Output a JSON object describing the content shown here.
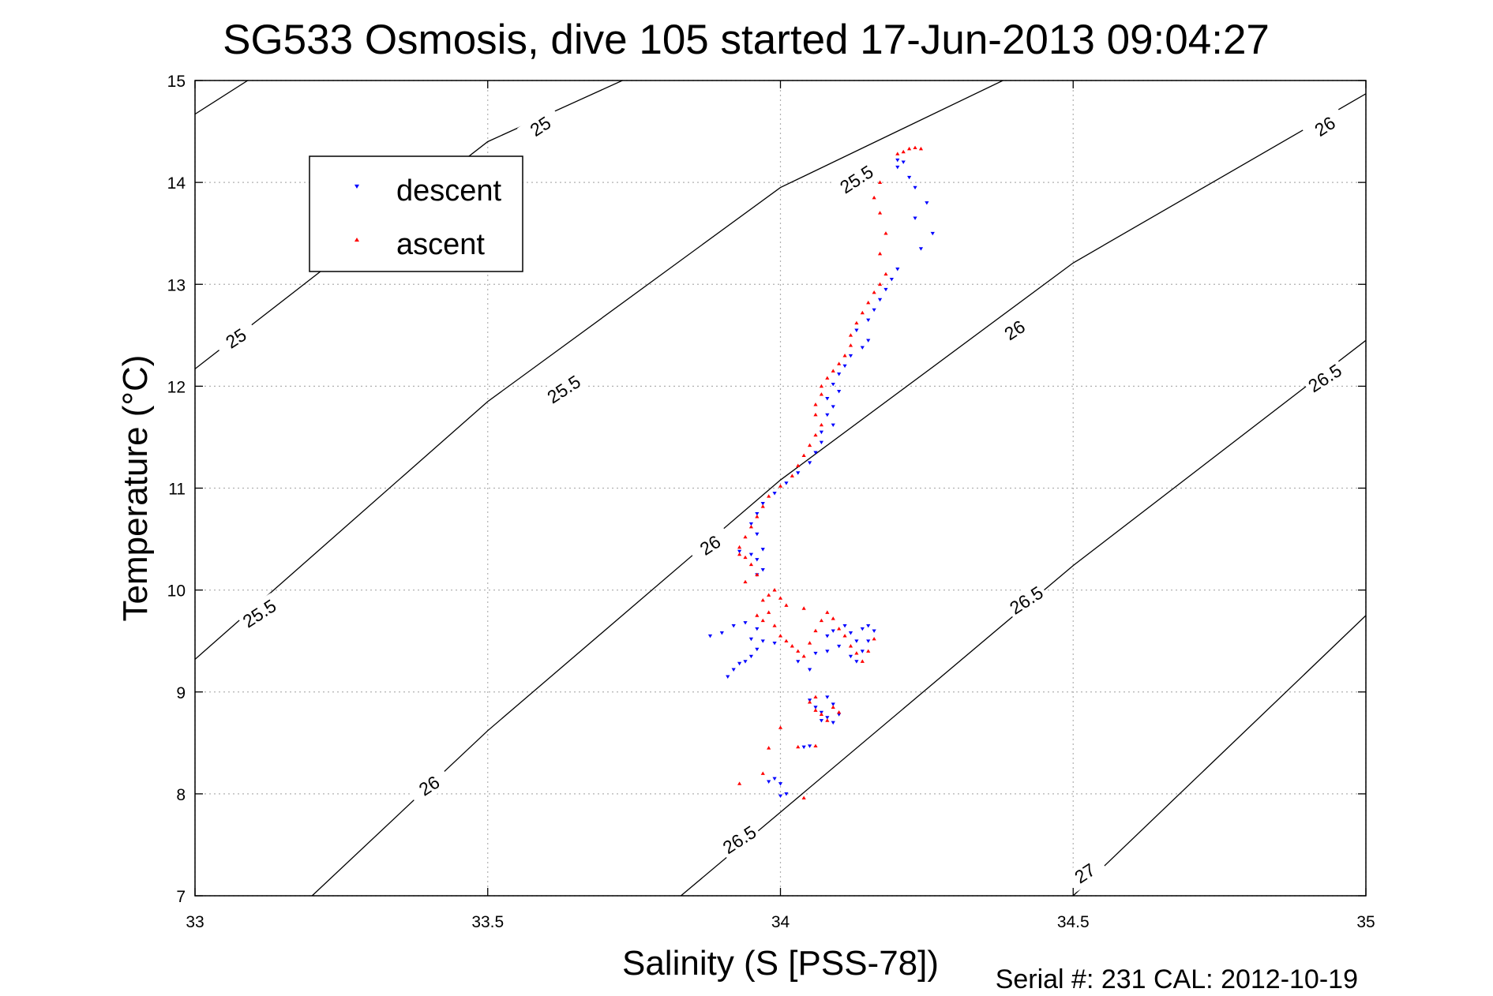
{
  "chart_data": {
    "type": "scatter",
    "title": "SG533 Osmosis, dive 105 started 17-Jun-2013 09:04:27",
    "xlabel": "Salinity (S [PSS-78])",
    "ylabel": "Temperature (°C)",
    "xlim": [
      33,
      35
    ],
    "ylim": [
      7,
      15
    ],
    "xticks": [
      "33",
      "33.5",
      "34",
      "34.5",
      "35"
    ],
    "yticks": [
      "7",
      "8",
      "9",
      "10",
      "11",
      "12",
      "13",
      "14",
      "15"
    ],
    "grid": true,
    "legend_position": "top-left",
    "footer": "Serial #: 231  CAL: 2012-10-19",
    "density_contours": [
      {
        "level": "25",
        "points": [
          [
            33,
            14.67
          ],
          [
            33.09,
            15
          ],
          [
            33,
            12.17
          ],
          [
            33.5,
            14.4
          ],
          [
            33.73,
            15
          ]
        ],
        "labels": [
          [
            33.59,
            14.55
          ],
          [
            33.07,
            12.47
          ]
        ]
      },
      {
        "level": "25.5",
        "points": [
          [
            33,
            9.32
          ],
          [
            33.5,
            11.85
          ],
          [
            34,
            13.95
          ],
          [
            34.38,
            15
          ]
        ],
        "labels": [
          [
            33.63,
            11.97
          ],
          [
            33.11,
            9.77
          ],
          [
            34.13,
            14.03
          ]
        ]
      },
      {
        "level": "26",
        "points": [
          [
            33.2,
            7
          ],
          [
            33.5,
            8.62
          ],
          [
            34,
            11.08
          ],
          [
            34.5,
            13.21
          ],
          [
            35,
            14.87
          ]
        ],
        "labels": [
          [
            33.4,
            8.08
          ],
          [
            33.88,
            10.44
          ],
          [
            34.4,
            12.55
          ],
          [
            34.93,
            14.55
          ]
        ]
      },
      {
        "level": "26.5",
        "points": [
          [
            33.83,
            7
          ],
          [
            34,
            7.82
          ],
          [
            34.5,
            10.24
          ],
          [
            35,
            12.45
          ]
        ],
        "labels": [
          [
            33.93,
            7.55
          ],
          [
            34.42,
            9.9
          ],
          [
            34.93,
            12.08
          ]
        ]
      },
      {
        "level": "27",
        "points": [
          [
            34.5,
            7
          ],
          [
            35,
            9.75
          ]
        ],
        "labels": [
          [
            34.52,
            7.22
          ]
        ]
      }
    ],
    "series": [
      {
        "name": "descent",
        "color": "#0000ff",
        "marker": "triangle-down",
        "points": [
          [
            34.2,
            14.22
          ],
          [
            34.21,
            14.2
          ],
          [
            34.2,
            14.15
          ],
          [
            34.22,
            14.05
          ],
          [
            34.23,
            13.95
          ],
          [
            34.25,
            13.8
          ],
          [
            34.23,
            13.65
          ],
          [
            34.26,
            13.5
          ],
          [
            34.24,
            13.35
          ],
          [
            34.2,
            13.15
          ],
          [
            34.19,
            13.05
          ],
          [
            34.18,
            12.95
          ],
          [
            34.17,
            12.85
          ],
          [
            34.16,
            12.75
          ],
          [
            34.15,
            12.65
          ],
          [
            34.13,
            12.55
          ],
          [
            34.15,
            12.45
          ],
          [
            34.14,
            12.38
          ],
          [
            34.12,
            12.3
          ],
          [
            34.11,
            12.2
          ],
          [
            34.1,
            12.12
          ],
          [
            34.09,
            12.02
          ],
          [
            34.1,
            11.95
          ],
          [
            34.08,
            11.88
          ],
          [
            34.09,
            11.8
          ],
          [
            34.08,
            11.72
          ],
          [
            34.09,
            11.62
          ],
          [
            34.07,
            11.55
          ],
          [
            34.07,
            11.45
          ],
          [
            34.06,
            11.35
          ],
          [
            34.05,
            11.25
          ],
          [
            34.03,
            11.15
          ],
          [
            34.01,
            11.05
          ],
          [
            33.99,
            10.95
          ],
          [
            33.97,
            10.85
          ],
          [
            33.96,
            10.75
          ],
          [
            33.95,
            10.65
          ],
          [
            33.96,
            10.55
          ],
          [
            33.97,
            10.4
          ],
          [
            33.95,
            10.35
          ],
          [
            33.93,
            10.38
          ],
          [
            33.96,
            10.3
          ],
          [
            33.97,
            10.2
          ],
          [
            33.96,
            10.15
          ],
          [
            33.88,
            9.55
          ],
          [
            33.9,
            9.58
          ],
          [
            33.92,
            9.65
          ],
          [
            33.94,
            9.68
          ],
          [
            33.96,
            9.62
          ],
          [
            33.95,
            9.52
          ],
          [
            33.97,
            9.5
          ],
          [
            33.99,
            9.48
          ],
          [
            33.96,
            9.42
          ],
          [
            33.94,
            9.3
          ],
          [
            33.92,
            9.22
          ],
          [
            33.91,
            9.15
          ],
          [
            33.93,
            9.28
          ],
          [
            33.95,
            9.35
          ],
          [
            34.03,
            9.3
          ],
          [
            34.05,
            9.22
          ],
          [
            34.06,
            9.38
          ],
          [
            34.08,
            9.55
          ],
          [
            34.09,
            9.6
          ],
          [
            34.11,
            9.65
          ],
          [
            34.12,
            9.58
          ],
          [
            34.13,
            9.5
          ],
          [
            34.14,
            9.62
          ],
          [
            34.15,
            9.65
          ],
          [
            34.16,
            9.6
          ],
          [
            34.15,
            9.5
          ],
          [
            34.14,
            9.4
          ],
          [
            34.13,
            9.3
          ],
          [
            34.12,
            9.35
          ],
          [
            34.1,
            9.45
          ],
          [
            34.08,
            9.4
          ],
          [
            34.05,
            8.92
          ],
          [
            34.06,
            8.85
          ],
          [
            34.07,
            8.8
          ],
          [
            34.08,
            8.75
          ],
          [
            34.09,
            8.7
          ],
          [
            34.1,
            8.78
          ],
          [
            34.09,
            8.88
          ],
          [
            34.08,
            8.95
          ],
          [
            34.07,
            8.72
          ],
          [
            34.05,
            8.47
          ],
          [
            34.04,
            8.46
          ],
          [
            33.98,
            8.12
          ],
          [
            33.99,
            8.15
          ],
          [
            34.0,
            8.1
          ],
          [
            34.01,
            8.0
          ],
          [
            34.0,
            7.98
          ]
        ]
      },
      {
        "name": "ascent",
        "color": "#ff0000",
        "marker": "triangle-up",
        "points": [
          [
            34.21,
            14.3
          ],
          [
            34.22,
            14.33
          ],
          [
            34.23,
            14.34
          ],
          [
            34.24,
            14.33
          ],
          [
            34.2,
            14.28
          ],
          [
            34.17,
            14.0
          ],
          [
            34.16,
            13.85
          ],
          [
            34.17,
            13.7
          ],
          [
            34.18,
            13.5
          ],
          [
            34.17,
            13.3
          ],
          [
            34.18,
            13.1
          ],
          [
            34.17,
            13.0
          ],
          [
            34.16,
            12.92
          ],
          [
            34.15,
            12.82
          ],
          [
            34.14,
            12.72
          ],
          [
            34.13,
            12.62
          ],
          [
            34.12,
            12.5
          ],
          [
            34.12,
            12.4
          ],
          [
            34.11,
            12.3
          ],
          [
            34.1,
            12.22
          ],
          [
            34.09,
            12.15
          ],
          [
            34.08,
            12.08
          ],
          [
            34.07,
            12.0
          ],
          [
            34.07,
            11.92
          ],
          [
            34.06,
            11.82
          ],
          [
            34.06,
            11.72
          ],
          [
            34.07,
            11.62
          ],
          [
            34.06,
            11.52
          ],
          [
            34.05,
            11.42
          ],
          [
            34.04,
            11.32
          ],
          [
            34.03,
            11.22
          ],
          [
            34.02,
            11.12
          ],
          [
            34.0,
            11.02
          ],
          [
            33.98,
            10.92
          ],
          [
            33.97,
            10.82
          ],
          [
            33.96,
            10.72
          ],
          [
            33.95,
            10.62
          ],
          [
            33.94,
            10.52
          ],
          [
            33.93,
            10.42
          ],
          [
            33.93,
            10.35
          ],
          [
            33.94,
            10.32
          ],
          [
            33.95,
            10.25
          ],
          [
            33.96,
            10.15
          ],
          [
            33.94,
            10.08
          ],
          [
            33.97,
            9.9
          ],
          [
            33.98,
            9.95
          ],
          [
            33.99,
            10.0
          ],
          [
            34.0,
            9.92
          ],
          [
            34.01,
            9.85
          ],
          [
            33.97,
            9.7
          ],
          [
            33.99,
            9.65
          ],
          [
            34.0,
            9.55
          ],
          [
            34.01,
            9.5
          ],
          [
            34.02,
            9.45
          ],
          [
            34.03,
            9.4
          ],
          [
            34.04,
            9.35
          ],
          [
            34.05,
            9.48
          ],
          [
            34.06,
            9.6
          ],
          [
            34.07,
            9.7
          ],
          [
            34.08,
            9.78
          ],
          [
            34.09,
            9.72
          ],
          [
            34.1,
            9.62
          ],
          [
            34.11,
            9.55
          ],
          [
            34.12,
            9.45
          ],
          [
            34.13,
            9.38
          ],
          [
            34.14,
            9.3
          ],
          [
            34.15,
            9.4
          ],
          [
            34.16,
            9.52
          ],
          [
            33.96,
            9.75
          ],
          [
            33.98,
            9.78
          ],
          [
            34.04,
            9.82
          ],
          [
            34.05,
            8.9
          ],
          [
            34.06,
            8.82
          ],
          [
            34.07,
            8.78
          ],
          [
            34.08,
            8.72
          ],
          [
            34.09,
            8.85
          ],
          [
            34.1,
            8.8
          ],
          [
            34.06,
            8.95
          ],
          [
            34.0,
            8.65
          ],
          [
            33.98,
            8.45
          ],
          [
            34.03,
            8.46
          ],
          [
            34.06,
            8.47
          ],
          [
            33.97,
            8.2
          ],
          [
            33.93,
            8.1
          ],
          [
            34.04,
            7.96
          ]
        ]
      }
    ]
  }
}
